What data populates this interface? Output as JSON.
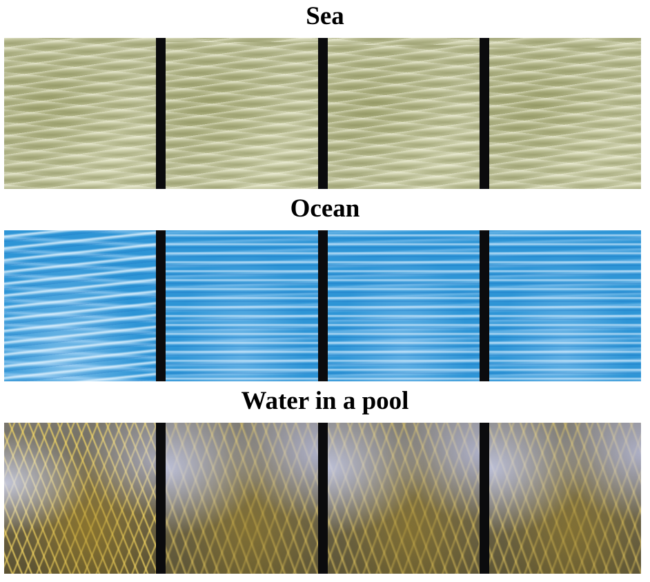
{
  "sections": [
    {
      "title": "Sea",
      "texture": "sea",
      "frame_count": 4,
      "base_color": "#bfc29a"
    },
    {
      "title": "Ocean",
      "texture": "ocean",
      "frame_count": 4,
      "base_color": "#2e95d6"
    },
    {
      "title": "Water in a pool",
      "texture": "pool",
      "frame_count": 4,
      "base_color": "#6f6a55"
    }
  ],
  "separator_color": "#0b0b0d"
}
